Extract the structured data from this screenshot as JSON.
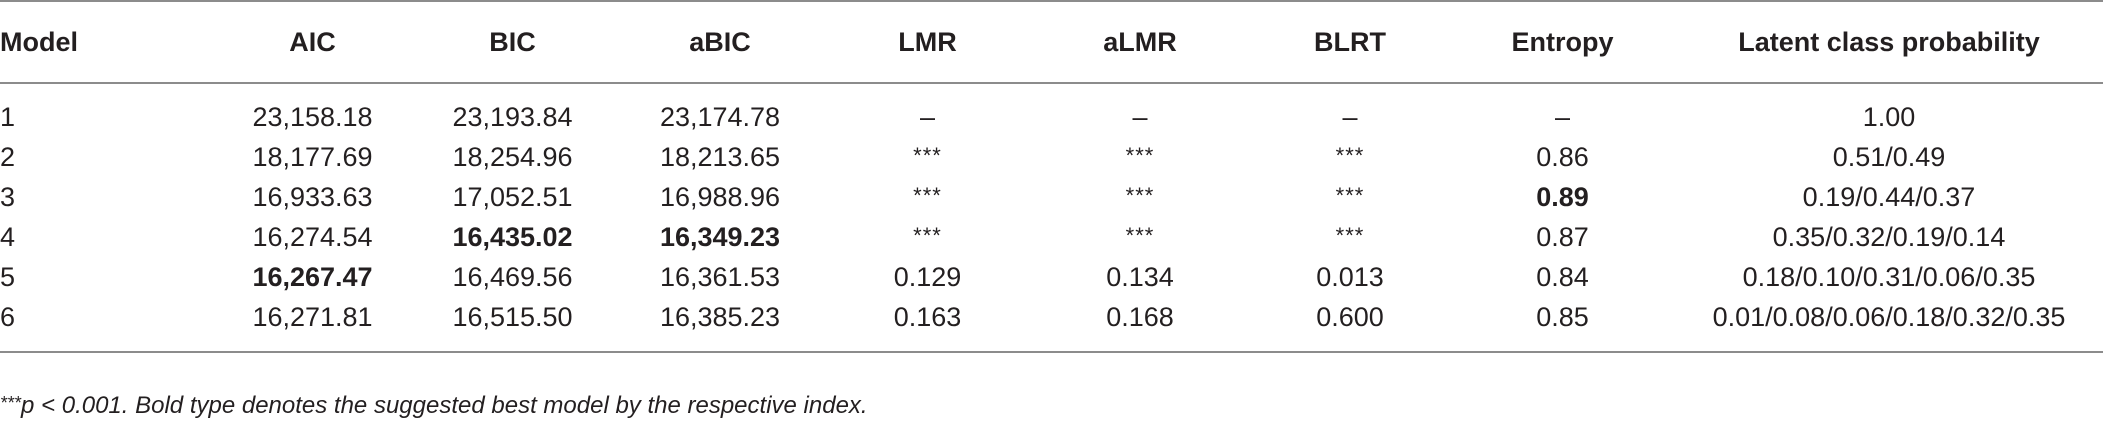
{
  "table": {
    "headers": [
      "Model",
      "AIC",
      "BIC",
      "aBIC",
      "LMR",
      "aLMR",
      "BLRT",
      "Entropy",
      "Latent class probability"
    ],
    "rows": [
      {
        "model": "1",
        "aic": "23,158.18",
        "bic": "23,193.84",
        "abic": "23,174.78",
        "lmr": "–",
        "almr": "–",
        "blrt": "–",
        "entropy": "–",
        "lcp": "1.00"
      },
      {
        "model": "2",
        "aic": "18,177.69",
        "bic": "18,254.96",
        "abic": "18,213.65",
        "lmr": "***",
        "almr": "***",
        "blrt": "***",
        "entropy": "0.86",
        "lcp": "0.51/0.49"
      },
      {
        "model": "3",
        "aic": "16,933.63",
        "bic": "17,052.51",
        "abic": "16,988.96",
        "lmr": "***",
        "almr": "***",
        "blrt": "***",
        "entropy": "0.89",
        "lcp": "0.19/0.44/0.37"
      },
      {
        "model": "4",
        "aic": "16,274.54",
        "bic": "16,435.02",
        "abic": "16,349.23",
        "lmr": "***",
        "almr": "***",
        "blrt": "***",
        "entropy": "0.87",
        "lcp": "0.35/0.32/0.19/0.14"
      },
      {
        "model": "5",
        "aic": "16,267.47",
        "bic": "16,469.56",
        "abic": "16,361.53",
        "lmr": "0.129",
        "almr": "0.134",
        "blrt": "0.013",
        "entropy": "0.84",
        "lcp": "0.18/0.10/0.31/0.06/0.35"
      },
      {
        "model": "6",
        "aic": "16,271.81",
        "bic": "16,515.50",
        "abic": "16,385.23",
        "lmr": "0.163",
        "almr": "0.168",
        "blrt": "0.600",
        "entropy": "0.85",
        "lcp": "0.01/0.08/0.06/0.18/0.32/0.35"
      }
    ],
    "bold_cells": [
      "rows.2.entropy",
      "rows.3.bic",
      "rows.3.abic",
      "rows.4.aic"
    ]
  },
  "footnote": {
    "stars": "***",
    "text": "p < 0.001. Bold type denotes the suggested best model by the respective index."
  }
}
